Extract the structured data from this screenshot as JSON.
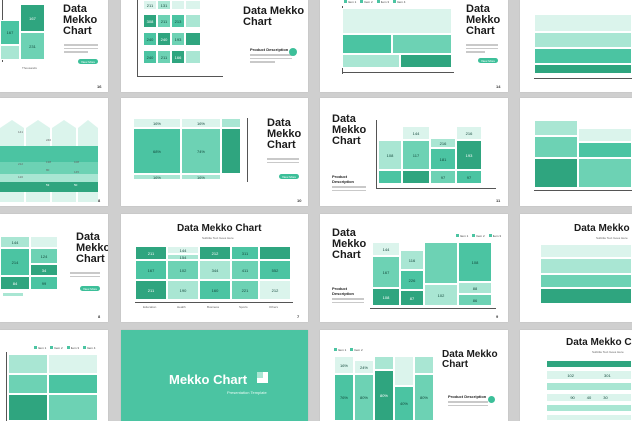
{
  "colors": {
    "accent": "#3cbf99",
    "dark": "#2fa57f",
    "light": "#a9e6d3",
    "background": "#cfcfcf"
  },
  "titles": {
    "data_mekko_chart_stacked": "Data\nMekko\nChart",
    "data_mekko_chart_inline": "Data Mekko Chart",
    "subtitle": "Subtitle Text Goes Here",
    "product_description": "Product Description",
    "view_more": "View More"
  },
  "page_numbers": {
    "s1": "16",
    "s3": "14",
    "s6": "10",
    "s7": "11",
    "s9": "8",
    "s10": "7",
    "s11": "9",
    "s5": "6"
  },
  "cover": {
    "title": "Mekko Chart",
    "subtitle": "Presentation Template"
  },
  "slides": {
    "s1": {
      "cells": [
        "167",
        "167",
        "231",
        "231"
      ],
      "axis_label": "Thousands"
    },
    "s2": {
      "cells": [
        "211",
        "131",
        "144",
        "308",
        "211",
        "213",
        "240",
        "240",
        "193",
        "240",
        "211",
        "166"
      ]
    },
    "s3": {
      "legend": [
        "Item 1",
        "Item 2",
        "Item 3",
        "Item 4"
      ]
    },
    "s5": {
      "cells": [
        "141",
        "240",
        "212",
        "138",
        "108",
        "120",
        "80",
        "145",
        "53",
        "50"
      ]
    },
    "s6": {
      "cells": [
        "16%",
        "16%",
        "68%",
        "74%",
        "16%",
        "16%"
      ]
    },
    "s7": {
      "cells": [
        "108",
        "144",
        "117",
        "108",
        "216",
        "181",
        "216",
        "193",
        "97",
        "97"
      ]
    },
    "s9": {
      "cells": [
        "144",
        "124",
        "214",
        "34",
        "84",
        "99"
      ]
    },
    "s10": {
      "cells": [
        "211",
        "144",
        "154",
        "212",
        "311",
        "144",
        "167",
        "102",
        "344",
        "411",
        "552",
        "211",
        "190",
        "160",
        "221",
        "212",
        "87",
        "97",
        "87"
      ],
      "categories": [
        "Education",
        "Health",
        "Business",
        "Sports",
        "Others"
      ]
    },
    "s11": {
      "legend": [
        "Item 1",
        "Item 2",
        "Item 3"
      ],
      "cells": [
        "144",
        "167",
        "116",
        "108",
        "102",
        "226",
        "108",
        "87",
        "88",
        "86"
      ]
    },
    "s12": {
      "title_partial": "Data Mekko C",
      "subtitle": "Subtitle Text Goes Here"
    },
    "s14": {
      "legend": [
        "Item 1",
        "Item 2",
        "Item 3",
        "Item 4"
      ]
    },
    "s15": {
      "legend": [
        "Item 1",
        "Item 2"
      ],
      "cells": [
        "76%",
        "80%",
        "80%",
        "80%",
        "76%",
        "80%",
        "40%",
        "80%",
        "16%",
        "24%"
      ]
    },
    "s16": {
      "title_partial": "Data Mekko Ch",
      "subtitle": "Subtitle Text Goes Here",
      "cells": [
        "102",
        "301",
        "90",
        "40",
        "30"
      ]
    }
  }
}
